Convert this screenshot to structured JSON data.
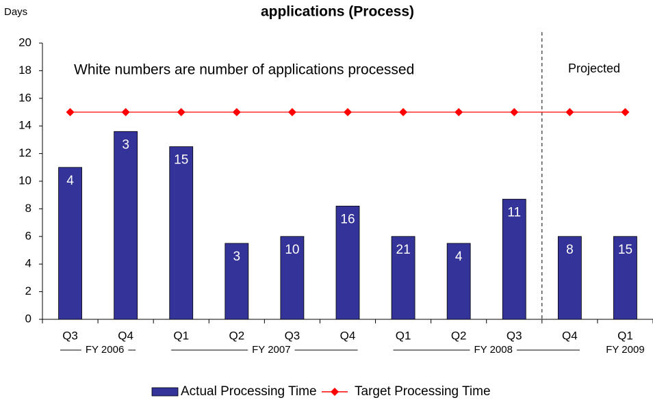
{
  "chart_data": {
    "type": "bar_line",
    "title": "applications (Process)",
    "y_label": "Days",
    "annotation": "White numbers are number of applications processed",
    "projected_label": "Projected",
    "categories": [
      "Q3",
      "Q4",
      "Q1",
      "Q2",
      "Q3",
      "Q4",
      "Q1",
      "Q2",
      "Q3",
      "Q4",
      "Q1"
    ],
    "groups": [
      "FY 2006",
      "FY 2007",
      "FY 2008",
      "FY 2009"
    ],
    "series": [
      {
        "name": "Actual Processing Time",
        "type": "bar",
        "color": "#333399",
        "values": [
          11,
          13.6,
          12.5,
          5.5,
          6,
          8.2,
          6,
          5.5,
          8.7,
          6,
          6
        ],
        "counts": [
          4,
          3,
          15,
          3,
          10,
          16,
          21,
          4,
          11,
          8,
          15
        ]
      },
      {
        "name": "Target Processing Time",
        "type": "line",
        "color": "#ff0000",
        "values": [
          15,
          15,
          15,
          15,
          15,
          15,
          15,
          15,
          15,
          15,
          15
        ]
      }
    ],
    "ylim": [
      0,
      20
    ],
    "yticks": [
      0,
      2,
      4,
      6,
      8,
      10,
      12,
      14,
      16,
      18,
      20
    ]
  }
}
